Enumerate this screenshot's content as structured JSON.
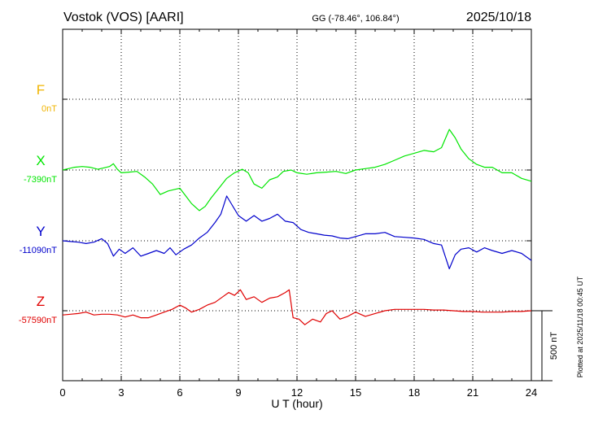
{
  "header": {
    "station": "Vostok (VOS)  [AARI]",
    "coords": "GG (-78.46°, 106.84°)",
    "date": "2025/10/18"
  },
  "side_note": "Plotted at 2025/11/18 00:45 UT",
  "colors": {
    "F": "#f0b400",
    "X": "#00e600",
    "Y": "#0000cc",
    "Z": "#e00000",
    "axis": "#000000"
  },
  "chart_data": {
    "type": "line",
    "xlabel": "U T (hour)",
    "xlim": [
      0,
      24
    ],
    "x_ticks": [
      "0",
      "3",
      "6",
      "9",
      "12",
      "15",
      "18",
      "21",
      "24"
    ],
    "scale_bar_label": "500 nT",
    "scale_bar_nT": 500,
    "series": [
      {
        "name": "F",
        "baseline_label": "0nT",
        "baseline_nT": 0,
        "x": [],
        "values": []
      },
      {
        "name": "X",
        "baseline_label": "-7390nT",
        "baseline_nT": -7390,
        "x": [
          0,
          0.3,
          0.6,
          1.0,
          1.4,
          1.8,
          2.1,
          2.4,
          2.6,
          2.8,
          3.0,
          3.4,
          3.8,
          4.2,
          4.6,
          5.0,
          5.4,
          5.7,
          6.0,
          6.3,
          6.6,
          7.0,
          7.3,
          7.6,
          8.0,
          8.4,
          8.8,
          9.2,
          9.5,
          9.8,
          10.2,
          10.6,
          11.0,
          11.3,
          11.7,
          12.0,
          12.5,
          13.0,
          13.5,
          14.0,
          14.5,
          15.0,
          15.5,
          16.0,
          16.5,
          17.0,
          17.5,
          18.0,
          18.5,
          19.0,
          19.4,
          19.8,
          20.1,
          20.4,
          20.8,
          21.2,
          21.6,
          22.0,
          22.5,
          23.0,
          23.5,
          24.0
        ],
        "values": [
          0,
          10,
          20,
          25,
          20,
          5,
          15,
          25,
          45,
          5,
          -20,
          -15,
          -10,
          -50,
          -100,
          -175,
          -150,
          -140,
          -130,
          -185,
          -240,
          -290,
          -260,
          -200,
          -130,
          -60,
          -20,
          5,
          -20,
          -100,
          -130,
          -70,
          -50,
          -10,
          0,
          -20,
          -30,
          -20,
          -15,
          -10,
          -25,
          0,
          10,
          20,
          40,
          70,
          100,
          120,
          140,
          130,
          160,
          290,
          230,
          150,
          80,
          40,
          20,
          20,
          -20,
          -20,
          -60,
          -80
        ]
      },
      {
        "name": "Y",
        "baseline_label": "-11090nT",
        "baseline_nT": -11090,
        "x": [
          0,
          0.4,
          0.8,
          1.2,
          1.6,
          2.0,
          2.3,
          2.6,
          2.9,
          3.2,
          3.6,
          4.0,
          4.4,
          4.8,
          5.2,
          5.5,
          5.8,
          6.2,
          6.6,
          7.0,
          7.4,
          7.8,
          8.1,
          8.4,
          8.7,
          9.0,
          9.4,
          9.8,
          10.2,
          10.6,
          11.0,
          11.4,
          11.8,
          12.2,
          12.6,
          13.0,
          13.4,
          13.8,
          14.2,
          14.6,
          15.0,
          15.5,
          16.0,
          16.5,
          17.0,
          17.5,
          18.0,
          18.5,
          19.0,
          19.4,
          19.8,
          20.1,
          20.4,
          20.8,
          21.2,
          21.6,
          22.0,
          22.5,
          23.0,
          23.5,
          24.0
        ],
        "values": [
          0,
          -5,
          -10,
          -20,
          -10,
          15,
          -20,
          -110,
          -60,
          -90,
          -50,
          -110,
          -90,
          -70,
          -90,
          -50,
          -100,
          -60,
          -30,
          20,
          60,
          130,
          190,
          320,
          250,
          180,
          140,
          180,
          140,
          160,
          190,
          140,
          130,
          80,
          60,
          50,
          40,
          35,
          20,
          15,
          30,
          50,
          50,
          60,
          30,
          25,
          20,
          10,
          -20,
          -30,
          -200,
          -100,
          -60,
          -50,
          -80,
          -50,
          -70,
          -90,
          -70,
          -90,
          -140
        ]
      },
      {
        "name": "Z",
        "baseline_label": "-57590nT",
        "baseline_nT": -57590,
        "x": [
          0,
          0.4,
          0.8,
          1.2,
          1.6,
          2.0,
          2.4,
          2.8,
          3.2,
          3.6,
          4.0,
          4.4,
          4.8,
          5.2,
          5.6,
          6.0,
          6.3,
          6.6,
          7.0,
          7.4,
          7.8,
          8.2,
          8.5,
          8.8,
          9.1,
          9.4,
          9.8,
          10.2,
          10.6,
          11.0,
          11.4,
          11.6,
          11.8,
          12.1,
          12.4,
          12.8,
          13.2,
          13.5,
          13.8,
          14.2,
          14.6,
          15.0,
          15.5,
          16.0,
          16.5,
          17.0,
          17.5,
          18.0,
          18.5,
          19.0,
          19.5,
          20.0,
          20.5,
          21.0,
          21.5,
          22.0,
          22.5,
          23.0,
          23.5,
          24.0
        ],
        "values": [
          -30,
          -25,
          -20,
          -10,
          -30,
          -25,
          -25,
          -30,
          -45,
          -30,
          -50,
          -50,
          -30,
          -10,
          10,
          40,
          20,
          -10,
          10,
          40,
          60,
          100,
          130,
          110,
          150,
          80,
          100,
          60,
          90,
          100,
          130,
          150,
          -50,
          -60,
          -100,
          -60,
          -80,
          -20,
          0,
          -60,
          -40,
          -10,
          -40,
          -20,
          0,
          10,
          10,
          10,
          10,
          5,
          5,
          0,
          -5,
          -5,
          -10,
          -10,
          -10,
          -5,
          -5,
          0
        ]
      }
    ]
  }
}
